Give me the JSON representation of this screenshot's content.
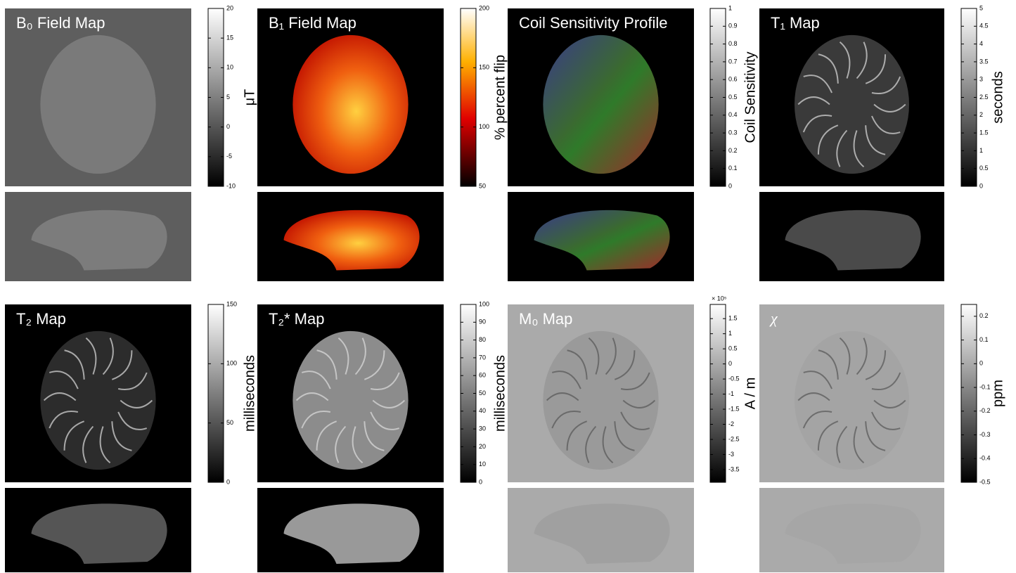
{
  "panels": [
    {
      "title": "B₀ Field Map",
      "unit": "μT",
      "colormap": "gray",
      "clim": [
        -10,
        20
      ],
      "ticks": [
        -10,
        -5,
        0,
        5,
        10,
        15,
        20
      ]
    },
    {
      "title": "B₁ Field Map",
      "unit": "% percent flip",
      "colormap": "hot",
      "clim": [
        50,
        200
      ],
      "ticks": [
        50,
        100,
        150,
        200
      ]
    },
    {
      "title": "Coil Sensitivity Profile",
      "unit": "Coil Sensitivity",
      "colormap": "gray",
      "clim": [
        0,
        1
      ],
      "ticks": [
        0,
        0.1,
        0.2,
        0.3,
        0.4,
        0.5,
        0.6,
        0.7,
        0.8,
        0.9,
        1
      ]
    },
    {
      "title": "T₁ Map",
      "unit": "seconds",
      "colormap": "gray",
      "clim": [
        0,
        5
      ],
      "ticks": [
        0,
        0.5,
        1,
        1.5,
        2,
        2.5,
        3,
        3.5,
        4,
        4.5,
        5
      ]
    },
    {
      "title": "T₂ Map",
      "unit": "milliseconds",
      "colormap": "gray",
      "clim": [
        0,
        150
      ],
      "ticks": [
        0,
        50,
        100,
        150
      ]
    },
    {
      "title": "T₂* Map",
      "unit": "milliseconds",
      "colormap": "gray",
      "clim": [
        0,
        100
      ],
      "ticks": [
        0,
        10,
        20,
        30,
        40,
        50,
        60,
        70,
        80,
        90,
        100
      ]
    },
    {
      "title": "M₀ Map",
      "unit": "A / m",
      "colormap": "gray",
      "multiplier": "× 10⁵",
      "clim": [
        -3.92,
        1.97
      ],
      "ticks": [
        -3.5,
        -3,
        -2.5,
        -2,
        -1.5,
        -1,
        -0.5,
        0,
        0.5,
        1,
        1.5
      ]
    },
    {
      "title": "χ",
      "unit": "ppm",
      "colormap": "gray",
      "clim": [
        -0.5,
        0.25
      ],
      "ticks": [
        -0.5,
        -0.4,
        -0.3,
        -0.2,
        -0.1,
        0,
        0.1,
        0.2
      ]
    }
  ]
}
